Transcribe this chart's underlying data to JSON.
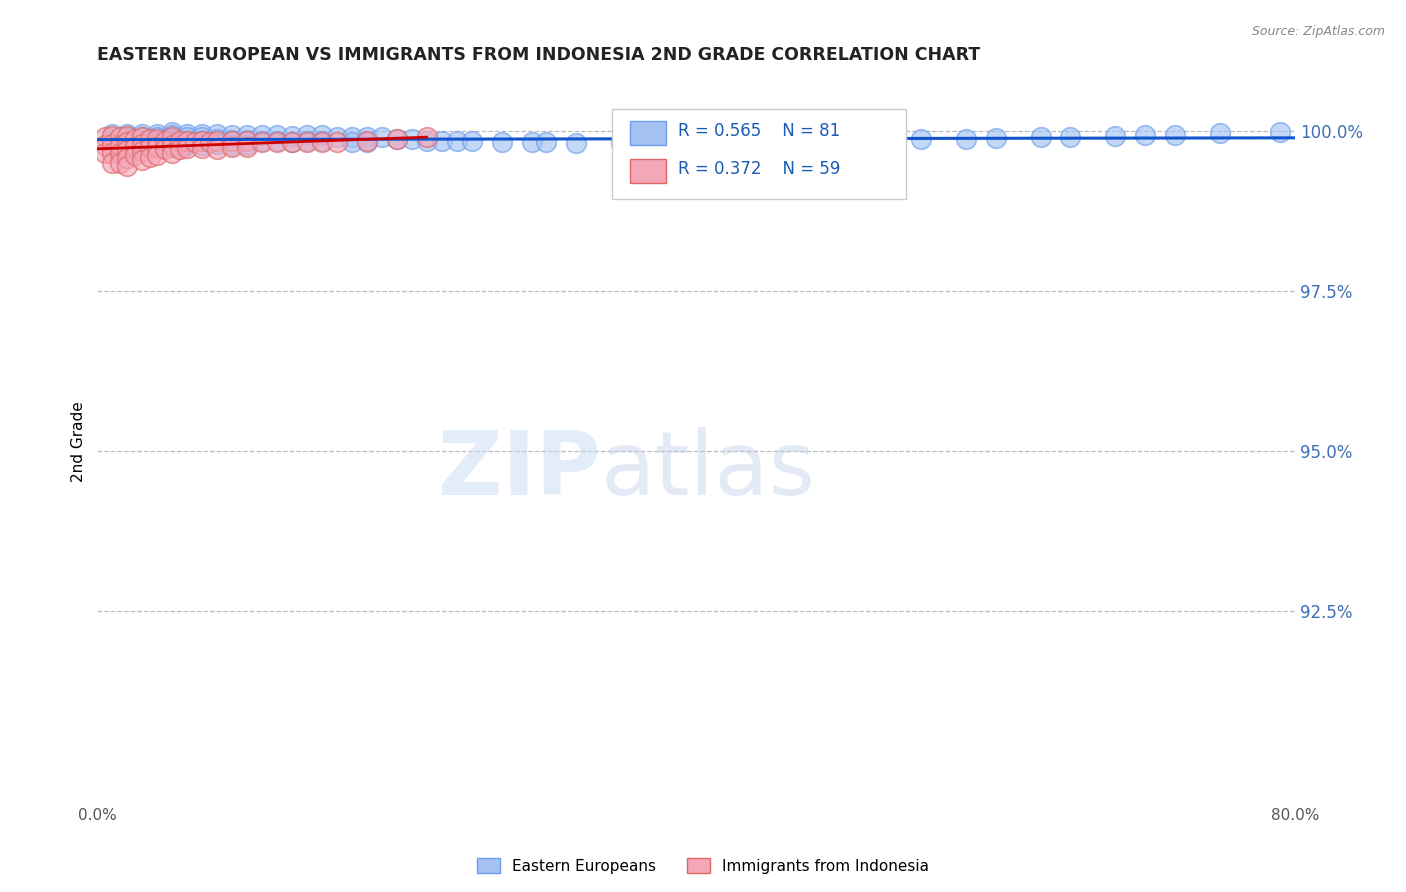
{
  "title": "EASTERN EUROPEAN VS IMMIGRANTS FROM INDONESIA 2ND GRADE CORRELATION CHART",
  "source": "Source: ZipAtlas.com",
  "ylabel": "2nd Grade",
  "ytick_labels": [
    "92.5%",
    "95.0%",
    "97.5%",
    "100.0%"
  ],
  "ytick_values": [
    0.925,
    0.95,
    0.975,
    1.0
  ],
  "xlim": [
    0.0,
    0.8
  ],
  "ylim": [
    0.895,
    1.008
  ],
  "legend_R_blue": "R = 0.565",
  "legend_N_blue": "N = 81",
  "legend_R_pink": "R = 0.372",
  "legend_N_pink": "N = 59",
  "blue_color": "#a4c2f4",
  "pink_color": "#f4a7b9",
  "blue_edge_color": "#6d9eeb",
  "pink_edge_color": "#e06666",
  "blue_line_color": "#1155cc",
  "pink_line_color": "#cc0000",
  "blue_scatter_x": [
    0.01,
    0.01,
    0.02,
    0.02,
    0.02,
    0.03,
    0.03,
    0.03,
    0.03,
    0.04,
    0.04,
    0.04,
    0.04,
    0.05,
    0.05,
    0.05,
    0.05,
    0.05,
    0.06,
    0.06,
    0.06,
    0.06,
    0.07,
    0.07,
    0.07,
    0.07,
    0.08,
    0.08,
    0.08,
    0.09,
    0.09,
    0.09,
    0.1,
    0.1,
    0.1,
    0.11,
    0.11,
    0.12,
    0.12,
    0.13,
    0.13,
    0.14,
    0.14,
    0.15,
    0.15,
    0.16,
    0.17,
    0.17,
    0.18,
    0.18,
    0.19,
    0.2,
    0.21,
    0.22,
    0.23,
    0.24,
    0.25,
    0.27,
    0.29,
    0.3,
    0.32,
    0.35,
    0.38,
    0.4,
    0.42,
    0.45,
    0.47,
    0.5,
    0.52,
    0.55,
    0.58,
    0.6,
    0.63,
    0.65,
    0.68,
    0.7,
    0.72,
    0.75,
    0.79
  ],
  "blue_scatter_y": [
    0.9995,
    0.9985,
    0.9995,
    0.999,
    0.998,
    0.9995,
    0.999,
    0.9985,
    0.998,
    0.9995,
    0.999,
    0.9985,
    0.9978,
    0.9998,
    0.9993,
    0.9988,
    0.9983,
    0.9975,
    0.9995,
    0.999,
    0.9985,
    0.9978,
    0.9995,
    0.999,
    0.9985,
    0.9978,
    0.9995,
    0.9988,
    0.998,
    0.9993,
    0.9986,
    0.9978,
    0.9993,
    0.9986,
    0.9978,
    0.9993,
    0.9985,
    0.9993,
    0.9984,
    0.9992,
    0.9983,
    0.9993,
    0.9984,
    0.9993,
    0.9984,
    0.999,
    0.999,
    0.9983,
    0.999,
    0.9983,
    0.999,
    0.9987,
    0.9987,
    0.9985,
    0.9985,
    0.9984,
    0.9984,
    0.9983,
    0.9982,
    0.9982,
    0.9981,
    0.9981,
    0.9981,
    0.9981,
    0.9982,
    0.9983,
    0.9984,
    0.9985,
    0.9986,
    0.9987,
    0.9988,
    0.9989,
    0.999,
    0.9991,
    0.9992,
    0.9993,
    0.9994,
    0.9996,
    0.9998
  ],
  "pink_scatter_x": [
    0.005,
    0.005,
    0.005,
    0.01,
    0.01,
    0.01,
    0.01,
    0.015,
    0.015,
    0.015,
    0.015,
    0.02,
    0.02,
    0.02,
    0.02,
    0.02,
    0.025,
    0.025,
    0.025,
    0.03,
    0.03,
    0.03,
    0.03,
    0.035,
    0.035,
    0.035,
    0.04,
    0.04,
    0.04,
    0.045,
    0.045,
    0.05,
    0.05,
    0.05,
    0.055,
    0.055,
    0.06,
    0.06,
    0.065,
    0.07,
    0.07,
    0.075,
    0.08,
    0.08,
    0.09,
    0.09,
    0.1,
    0.1,
    0.11,
    0.12,
    0.13,
    0.14,
    0.15,
    0.16,
    0.18,
    0.2,
    0.22
  ],
  "pink_scatter_y": [
    0.999,
    0.9978,
    0.9965,
    0.9992,
    0.998,
    0.9965,
    0.995,
    0.999,
    0.9978,
    0.9965,
    0.995,
    0.9992,
    0.9982,
    0.997,
    0.9958,
    0.9945,
    0.9988,
    0.9975,
    0.9962,
    0.999,
    0.998,
    0.9968,
    0.9955,
    0.9988,
    0.9975,
    0.996,
    0.9988,
    0.9975,
    0.9962,
    0.9985,
    0.9972,
    0.999,
    0.9978,
    0.9965,
    0.9985,
    0.9972,
    0.9985,
    0.9973,
    0.9983,
    0.9985,
    0.9973,
    0.9983,
    0.9985,
    0.9972,
    0.9985,
    0.9975,
    0.9985,
    0.9975,
    0.9983,
    0.9983,
    0.9982,
    0.9983,
    0.9983,
    0.9982,
    0.9985,
    0.9988,
    0.999
  ]
}
